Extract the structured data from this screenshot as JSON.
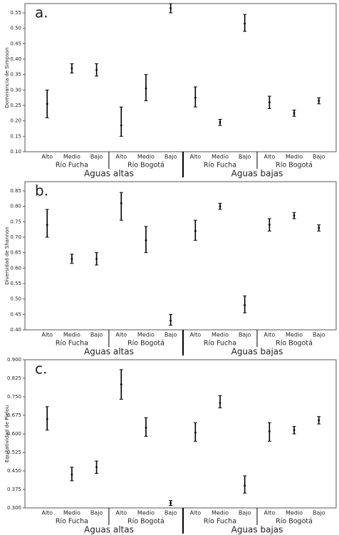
{
  "chart_data": [
    {
      "type": "errorbar",
      "panel_label": "a.",
      "y_label": "Dominancia de Simpson",
      "categories": [
        "Alto",
        "Medio",
        "Bajo",
        "Alto",
        "Medio",
        "Bajo",
        "Alto",
        "Medio",
        "Bajo",
        "Alto",
        "Medio",
        "Bajo"
      ],
      "groups": [
        "Río Fucha",
        "Río Bogotá",
        "Río Fucha",
        "Río Bogotá"
      ],
      "super_groups": [
        "Aguas altas",
        "Aguas bajas"
      ],
      "values": [
        0.255,
        0.37,
        0.365,
        0.185,
        0.305,
        0.565,
        0.275,
        0.195,
        0.515,
        0.26,
        0.225,
        0.265
      ],
      "lower": [
        0.21,
        0.355,
        0.345,
        0.15,
        0.265,
        0.55,
        0.245,
        0.185,
        0.49,
        0.24,
        0.215,
        0.255
      ],
      "upper": [
        0.3,
        0.385,
        0.385,
        0.245,
        0.35,
        0.58,
        0.31,
        0.205,
        0.545,
        0.28,
        0.235,
        0.275
      ],
      "color": "#000000",
      "ylim": [
        0.1,
        0.58
      ],
      "yticks": [
        {
          "value": 0.1,
          "label": "0.10"
        },
        {
          "value": 0.15,
          "label": "0.15"
        },
        {
          "value": 0.2,
          "label": "0.20"
        },
        {
          "value": 0.25,
          "label": "0.25"
        },
        {
          "value": 0.3,
          "label": "0.30"
        },
        {
          "value": 0.35,
          "label": "0.35"
        },
        {
          "value": 0.4,
          "label": "0.40"
        },
        {
          "value": 0.45,
          "label": "0.45"
        },
        {
          "value": 0.5,
          "label": "0.50"
        },
        {
          "value": 0.55,
          "label": "0.55"
        }
      ]
    },
    {
      "type": "errorbar",
      "panel_label": "b.",
      "y_label": "Diversidad de Shannon",
      "categories": [
        "Alto",
        "Medio",
        "Bajo",
        "Alto",
        "Medio",
        "Bajo",
        "Alto",
        "Medio",
        "Bajo",
        "Alto",
        "Medio",
        "Bajo"
      ],
      "groups": [
        "Río Fucha",
        "Río Bogotá",
        "Río Fucha",
        "Río Bogotá"
      ],
      "super_groups": [
        "Aguas altas",
        "Aguas bajas"
      ],
      "values": [
        0.74,
        0.63,
        0.63,
        0.81,
        0.69,
        0.43,
        0.72,
        0.8,
        0.48,
        0.74,
        0.77,
        0.73
      ],
      "lower": [
        0.7,
        0.615,
        0.61,
        0.755,
        0.65,
        0.415,
        0.69,
        0.79,
        0.455,
        0.72,
        0.76,
        0.72
      ],
      "upper": [
        0.79,
        0.645,
        0.65,
        0.845,
        0.735,
        0.45,
        0.755,
        0.81,
        0.51,
        0.76,
        0.78,
        0.74
      ],
      "color": "#000000",
      "ylim": [
        0.4,
        0.88
      ],
      "yticks": [
        {
          "value": 0.4,
          "label": "0.40"
        },
        {
          "value": 0.45,
          "label": "0.45"
        },
        {
          "value": 0.5,
          "label": "0.50"
        },
        {
          "value": 0.55,
          "label": "0.55"
        },
        {
          "value": 0.6,
          "label": "0.60"
        },
        {
          "value": 0.65,
          "label": "0.65"
        },
        {
          "value": 0.7,
          "label": "0.70"
        },
        {
          "value": 0.75,
          "label": "0.75"
        },
        {
          "value": 0.8,
          "label": "0.80"
        },
        {
          "value": 0.85,
          "label": "0.85"
        }
      ]
    },
    {
      "type": "errorbar",
      "panel_label": "c.",
      "y_label": "Equitatividad de Pielou",
      "categories": [
        "Alto",
        "Medio",
        "Bajo",
        "Alto",
        "Medio",
        "Bajo",
        "Alto",
        "Medio",
        "Bajo",
        "Alto",
        "Medio",
        "Bajo"
      ],
      "groups": [
        "Río Fucha",
        "Río Bogotá",
        "Río Fucha",
        "Río Bogotá"
      ],
      "super_groups": [
        "Aguas altas",
        "Aguas bajas"
      ],
      "values": [
        0.66,
        0.435,
        0.465,
        0.8,
        0.625,
        0.32,
        0.605,
        0.725,
        0.39,
        0.61,
        0.615,
        0.655
      ],
      "lower": [
        0.615,
        0.41,
        0.44,
        0.74,
        0.59,
        0.31,
        0.57,
        0.705,
        0.36,
        0.57,
        0.6,
        0.64
      ],
      "upper": [
        0.71,
        0.465,
        0.49,
        0.86,
        0.665,
        0.33,
        0.645,
        0.755,
        0.43,
        0.645,
        0.63,
        0.67
      ],
      "color": "#000000",
      "ylim": [
        0.3,
        0.9
      ],
      "yticks": [
        {
          "value": 0.3,
          "label": "0.300"
        },
        {
          "value": 0.375,
          "label": "0.375"
        },
        {
          "value": 0.45,
          "label": "0.450"
        },
        {
          "value": 0.525,
          "label": "0.525"
        },
        {
          "value": 0.6,
          "label": "0.600"
        },
        {
          "value": 0.675,
          "label": "0.675"
        },
        {
          "value": 0.75,
          "label": "0.750"
        },
        {
          "value": 0.825,
          "label": "0.825"
        },
        {
          "value": 0.9,
          "label": "0.900"
        }
      ]
    }
  ]
}
